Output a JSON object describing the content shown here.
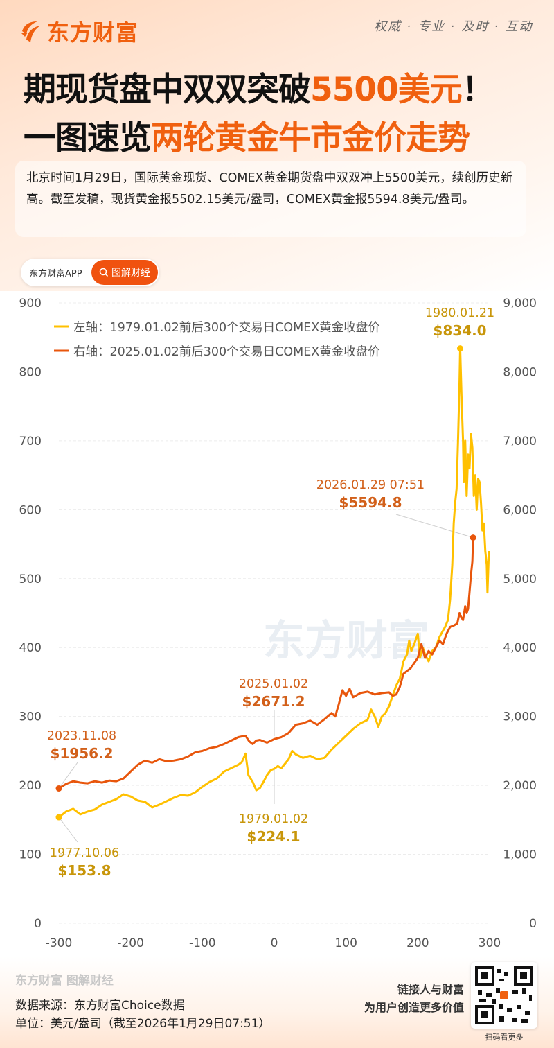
{
  "header": {
    "brand": "东方财富",
    "slogan": "权威 · 专业 · 及时 · 互动",
    "title_line1_a": "期现货盘中双双突破",
    "title_line1_b": "5500美元",
    "title_line1_c": "！",
    "title_line2_a": "一图速览",
    "title_line2_b": "两轮黄金牛市金价走势",
    "intro": "北京时间1月29日，国际黄金现货、COMEX黄金期货盘中双双冲上5500美元，续创历史新高。截至发稿，现货黄金报5502.15美元/盎司，COMEX黄金报5594.8美元/盎司。"
  },
  "pill": {
    "app_label": "东方财富APP",
    "button_label": "图解财经",
    "button_icon": "search-icon"
  },
  "colors": {
    "accent": "#f0600f",
    "gold": "#ffc000",
    "gold_label": "#c8960a",
    "orange": "#e8560c",
    "orange_label": "#d2601a"
  },
  "watermark": "东方财富",
  "chart_data": {
    "type": "line",
    "x_ticks": [
      "-300",
      "-200",
      "-100",
      "0",
      "100",
      "200",
      "300"
    ],
    "xlim": [
      -300,
      300
    ],
    "y_left_ticks": [
      "0",
      "100",
      "200",
      "300",
      "400",
      "500",
      "600",
      "700",
      "800",
      "900"
    ],
    "ylim_left": [
      0,
      900
    ],
    "y_right_ticks": [
      "0",
      "1,000",
      "2,000",
      "3,000",
      "4,000",
      "5,000",
      "6,000",
      "7,000",
      "8,000",
      "9,000"
    ],
    "ylim_right": [
      0,
      9000
    ],
    "grid": true,
    "legend_position": "top-left",
    "series": [
      {
        "name": "左轴：1979.01.02前后300个交易日COMEX黄金收盘价",
        "axis": "left",
        "x": [
          -300,
          -290,
          -280,
          -270,
          -260,
          -250,
          -240,
          -230,
          -220,
          -210,
          -200,
          -190,
          -180,
          -170,
          -160,
          -150,
          -140,
          -130,
          -120,
          -110,
          -100,
          -90,
          -80,
          -70,
          -60,
          -50,
          -45,
          -40,
          -36,
          -30,
          -25,
          -20,
          -15,
          -10,
          -5,
          0,
          5,
          10,
          20,
          25,
          30,
          40,
          50,
          60,
          70,
          80,
          90,
          100,
          110,
          120,
          130,
          135,
          140,
          145,
          150,
          155,
          160,
          165,
          170,
          175,
          180,
          185,
          188,
          191,
          195,
          200,
          203,
          207,
          210,
          215,
          220,
          225,
          230,
          238,
          242,
          245,
          248,
          250,
          252,
          254,
          256,
          258,
          259,
          261,
          263,
          264,
          266,
          268,
          270,
          272,
          274,
          276,
          278,
          280,
          282,
          284,
          286,
          288,
          290,
          292,
          294,
          296,
          297,
          299
        ],
        "y": [
          153.8,
          162,
          166,
          158,
          162,
          165,
          172,
          176,
          180,
          187,
          184,
          178,
          176,
          168,
          172,
          177,
          182,
          186,
          185,
          190,
          198,
          205,
          210,
          220,
          225,
          230,
          234,
          246,
          215,
          205,
          193,
          196,
          205,
          215,
          222,
          224.1,
          228,
          225,
          238,
          250,
          245,
          240,
          243,
          238,
          240,
          252,
          262,
          272,
          282,
          290,
          295,
          310,
          300,
          285,
          300,
          305,
          315,
          330,
          345,
          355,
          380,
          390,
          410,
          395,
          405,
          420,
          385,
          400,
          390,
          380,
          395,
          400,
          415,
          430,
          440,
          470,
          520,
          580,
          610,
          630,
          700,
          780,
          834.0,
          760,
          700,
          640,
          700,
          620,
          680,
          660,
          710,
          690,
          620,
          650,
          600,
          645,
          640,
          610,
          570,
          580,
          540,
          520,
          480,
          540
        ]
      },
      {
        "name": "右轴：2025.01.02前后300个交易日COMEX黄金收盘价",
        "axis": "right",
        "x": [
          -300,
          -290,
          -280,
          -270,
          -260,
          -250,
          -240,
          -230,
          -220,
          -210,
          -200,
          -190,
          -180,
          -170,
          -160,
          -150,
          -140,
          -130,
          -120,
          -110,
          -100,
          -90,
          -80,
          -70,
          -60,
          -50,
          -40,
          -35,
          -30,
          -25,
          -20,
          -10,
          0,
          10,
          20,
          30,
          40,
          50,
          60,
          70,
          80,
          85,
          90,
          95,
          100,
          105,
          110,
          120,
          130,
          140,
          150,
          160,
          165,
          170,
          175,
          180,
          190,
          200,
          205,
          210,
          215,
          220,
          225,
          230,
          235,
          240,
          245,
          250,
          255,
          258,
          260,
          263,
          266,
          268,
          270,
          272,
          274,
          276,
          277
        ],
        "y": [
          1956.2,
          2020,
          2060,
          2040,
          2030,
          2060,
          2040,
          2070,
          2060,
          2100,
          2200,
          2300,
          2360,
          2330,
          2380,
          2350,
          2360,
          2380,
          2420,
          2480,
          2500,
          2540,
          2560,
          2600,
          2650,
          2700,
          2720,
          2640,
          2600,
          2650,
          2660,
          2620,
          2671.2,
          2700,
          2760,
          2880,
          2900,
          2940,
          2880,
          2960,
          3050,
          3000,
          3180,
          3380,
          3300,
          3400,
          3280,
          3340,
          3360,
          3320,
          3340,
          3350,
          3300,
          3320,
          3430,
          3620,
          3700,
          3850,
          4050,
          3850,
          3950,
          3900,
          4000,
          4100,
          4050,
          4200,
          4300,
          4320,
          4350,
          4500,
          4450,
          4400,
          4600,
          4500,
          4560,
          4800,
          5050,
          5250,
          5594.8
        ]
      }
    ],
    "annotations": [
      {
        "date": "1980.01.21",
        "value": "$834.0",
        "series": 0
      },
      {
        "date": "2026.01.29   07:51",
        "value": "$5594.8",
        "series": 1
      },
      {
        "date": "2025.01.02",
        "value": "$2671.2",
        "series": 1
      },
      {
        "date": "2023.11.08",
        "value": "$1956.2",
        "series": 1
      },
      {
        "date": "1979.01.02",
        "value": "$224.1",
        "series": 0
      },
      {
        "date": "1977.10.06",
        "value": "$153.8",
        "series": 0
      }
    ]
  },
  "footer": {
    "brand_mark": "东方财富 图解财经",
    "source": "数据来源：东方财富Choice数据",
    "unit": "单位：美元/盎司（截至2026年1月29日07:51）",
    "slogan1": "链接人与财富",
    "slogan2": "为用户创造更多价值",
    "qr_label": "扫码看更多"
  }
}
